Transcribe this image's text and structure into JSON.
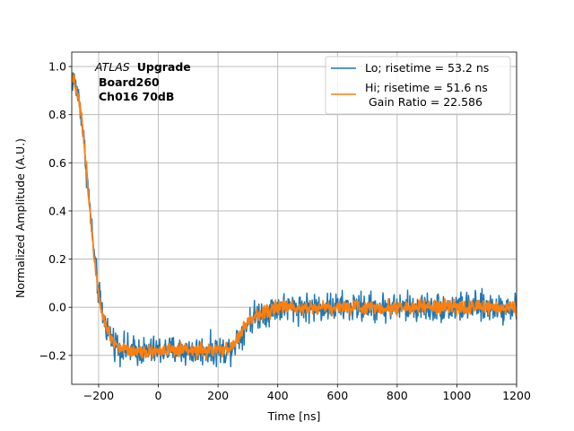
{
  "chart_data": {
    "type": "line",
    "xlabel": "Time [ns]",
    "ylabel": "Normalized Amplitude (A.U.)",
    "xlim": [
      -290,
      1200
    ],
    "ylim": [
      -0.32,
      1.06
    ],
    "xticks": [
      -200,
      0,
      200,
      400,
      600,
      800,
      1000,
      1200
    ],
    "yticks": [
      -0.2,
      0.0,
      0.2,
      0.4,
      0.6,
      0.8,
      1.0
    ],
    "xtick_labels": [
      "−200",
      "0",
      "200",
      "400",
      "600",
      "800",
      "1000",
      "1200"
    ],
    "ytick_labels": [
      "−0.2",
      "0.0",
      "0.2",
      "0.4",
      "0.6",
      "0.8",
      "1.0"
    ],
    "grid": true,
    "legend_position": "top-right",
    "annotation": {
      "atlas": "ATLAS",
      "upgrade": "Upgrade",
      "board": "Board260",
      "channel": "Ch016 70dB"
    },
    "series": [
      {
        "name": "Lo",
        "label": "Lo; risetime = 53.2 ns",
        "color": "#1f77b4",
        "noise": 0.03,
        "x": [
          -290,
          -280,
          -270,
          -260,
          -250,
          -240,
          -230,
          -220,
          -210,
          -200,
          -190,
          -180,
          -170,
          -160,
          -150,
          -140,
          -130,
          -120,
          -110,
          -100,
          -80,
          -60,
          -40,
          -20,
          0,
          50,
          100,
          150,
          200,
          230,
          250,
          270,
          290,
          310,
          330,
          350,
          380,
          400,
          450,
          500,
          600,
          700,
          800,
          900,
          1000,
          1100,
          1200
        ],
        "y": [
          0.96,
          0.93,
          0.89,
          0.82,
          0.7,
          0.56,
          0.42,
          0.28,
          0.16,
          0.06,
          -0.01,
          -0.06,
          -0.09,
          -0.12,
          -0.14,
          -0.155,
          -0.165,
          -0.17,
          -0.175,
          -0.178,
          -0.18,
          -0.182,
          -0.183,
          -0.182,
          -0.18,
          -0.18,
          -0.182,
          -0.18,
          -0.18,
          -0.178,
          -0.16,
          -0.12,
          -0.08,
          -0.05,
          -0.03,
          -0.02,
          -0.01,
          0.0,
          0.0,
          0.0,
          0.0,
          0.0,
          0.0,
          0.0,
          0.0,
          0.0,
          0.0
        ]
      },
      {
        "name": "Hi",
        "label": "Hi; risetime = 51.6 ns",
        "label2": " Gain Ratio = 22.586",
        "color": "#ff7f0e",
        "noise": 0.014,
        "x": [
          -290,
          -280,
          -270,
          -260,
          -250,
          -240,
          -230,
          -220,
          -210,
          -200,
          -190,
          -180,
          -170,
          -160,
          -150,
          -140,
          -130,
          -120,
          -110,
          -100,
          -80,
          -60,
          -40,
          -20,
          0,
          50,
          100,
          150,
          200,
          230,
          250,
          270,
          290,
          310,
          330,
          350,
          380,
          400,
          450,
          500,
          600,
          700,
          800,
          900,
          1000,
          1100,
          1200
        ],
        "y": [
          0.97,
          0.93,
          0.89,
          0.82,
          0.7,
          0.56,
          0.42,
          0.28,
          0.16,
          0.06,
          -0.01,
          -0.06,
          -0.09,
          -0.12,
          -0.14,
          -0.155,
          -0.165,
          -0.17,
          -0.175,
          -0.178,
          -0.18,
          -0.182,
          -0.183,
          -0.182,
          -0.18,
          -0.18,
          -0.182,
          -0.18,
          -0.18,
          -0.178,
          -0.16,
          -0.12,
          -0.08,
          -0.05,
          -0.03,
          -0.02,
          -0.01,
          0.0,
          0.0,
          0.0,
          0.0,
          0.0,
          0.0,
          0.0,
          0.0,
          0.0,
          0.0
        ]
      }
    ]
  }
}
